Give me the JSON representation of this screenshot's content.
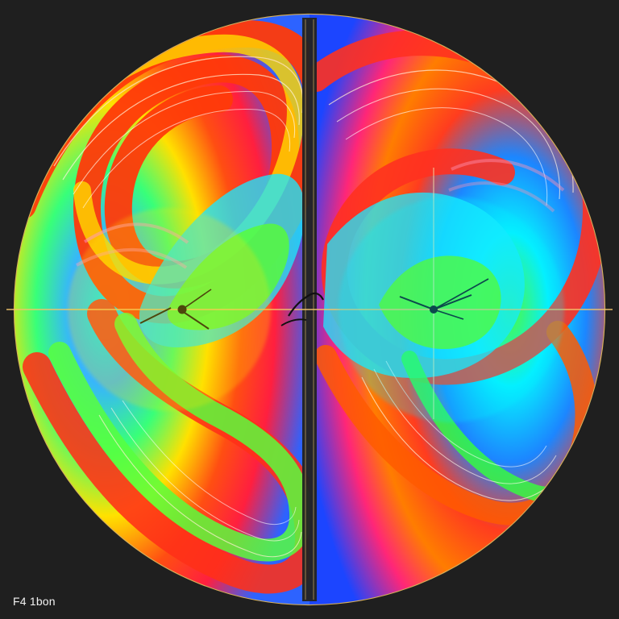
{
  "artwork": {
    "label": "F4 1bon"
  },
  "palette": {
    "background": "#1f1f1f",
    "accent_gold": "#e1b85c",
    "red": "#ff2d1b",
    "orange": "#ff7a00",
    "yellow": "#ffe600",
    "green": "#5aff35",
    "cyan": "#1fe4ff",
    "blue": "#1d4dff",
    "magenta": "#ff2bb8"
  },
  "icons": {
    "left_focus": "focus-point-icon",
    "right_focus": "focus-point-icon"
  }
}
